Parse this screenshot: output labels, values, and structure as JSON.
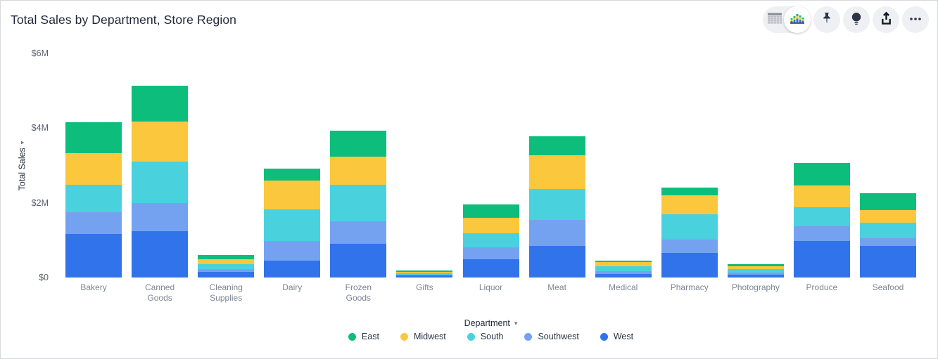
{
  "header": {
    "title": "Total Sales by Department, Store Region"
  },
  "toolbar": {
    "view_toggle": {
      "options": [
        "table-view",
        "chart-view"
      ],
      "selected": "chart-view"
    },
    "buttons": [
      "pin",
      "insights-bulb",
      "share",
      "more-options"
    ]
  },
  "glyphs": {
    "sort_caret": "▾"
  },
  "chart_data": {
    "type": "bar",
    "stacked": true,
    "title": "Total Sales by Department, Store Region",
    "xlabel": "Department",
    "ylabel": "Total Sales",
    "units": "millions USD",
    "ylim": [
      0,
      6
    ],
    "yticks": [
      0,
      2,
      4,
      6
    ],
    "ytick_labels": [
      "$0",
      "$2M",
      "$4M",
      "$6M"
    ],
    "grid": false,
    "legend_position": "bottom",
    "stack_order_bottom_to_top": [
      "West",
      "Southwest",
      "South",
      "Midwest",
      "East"
    ],
    "categories": [
      "Bakery",
      "Canned Goods",
      "Cleaning Supplies",
      "Dairy",
      "Frozen Goods",
      "Gifts",
      "Liquor",
      "Meat",
      "Medical",
      "Pharmacy",
      "Photography",
      "Produce",
      "Seafood"
    ],
    "series": [
      {
        "name": "East",
        "color": "#0dbd7c",
        "values": [
          0.82,
          0.97,
          0.11,
          0.32,
          0.71,
          0.03,
          0.36,
          0.52,
          0.05,
          0.2,
          0.05,
          0.61,
          0.44
        ]
      },
      {
        "name": "Midwest",
        "color": "#fbc83d",
        "values": [
          0.84,
          1.07,
          0.13,
          0.77,
          0.74,
          0.03,
          0.42,
          0.9,
          0.11,
          0.5,
          0.08,
          0.57,
          0.35
        ]
      },
      {
        "name": "South",
        "color": "#49d2dd",
        "values": [
          0.74,
          1.1,
          0.13,
          0.84,
          0.99,
          0.04,
          0.38,
          0.83,
          0.13,
          0.69,
          0.09,
          0.51,
          0.4
        ]
      },
      {
        "name": "Southwest",
        "color": "#74a2f1",
        "values": [
          0.59,
          0.76,
          0.08,
          0.52,
          0.59,
          0.03,
          0.31,
          0.7,
          0.08,
          0.36,
          0.06,
          0.41,
          0.22
        ]
      },
      {
        "name": "West",
        "color": "#3173eb",
        "values": [
          1.16,
          1.24,
          0.15,
          0.46,
          0.91,
          0.05,
          0.49,
          0.84,
          0.09,
          0.65,
          0.08,
          0.97,
          0.84
        ]
      }
    ]
  }
}
